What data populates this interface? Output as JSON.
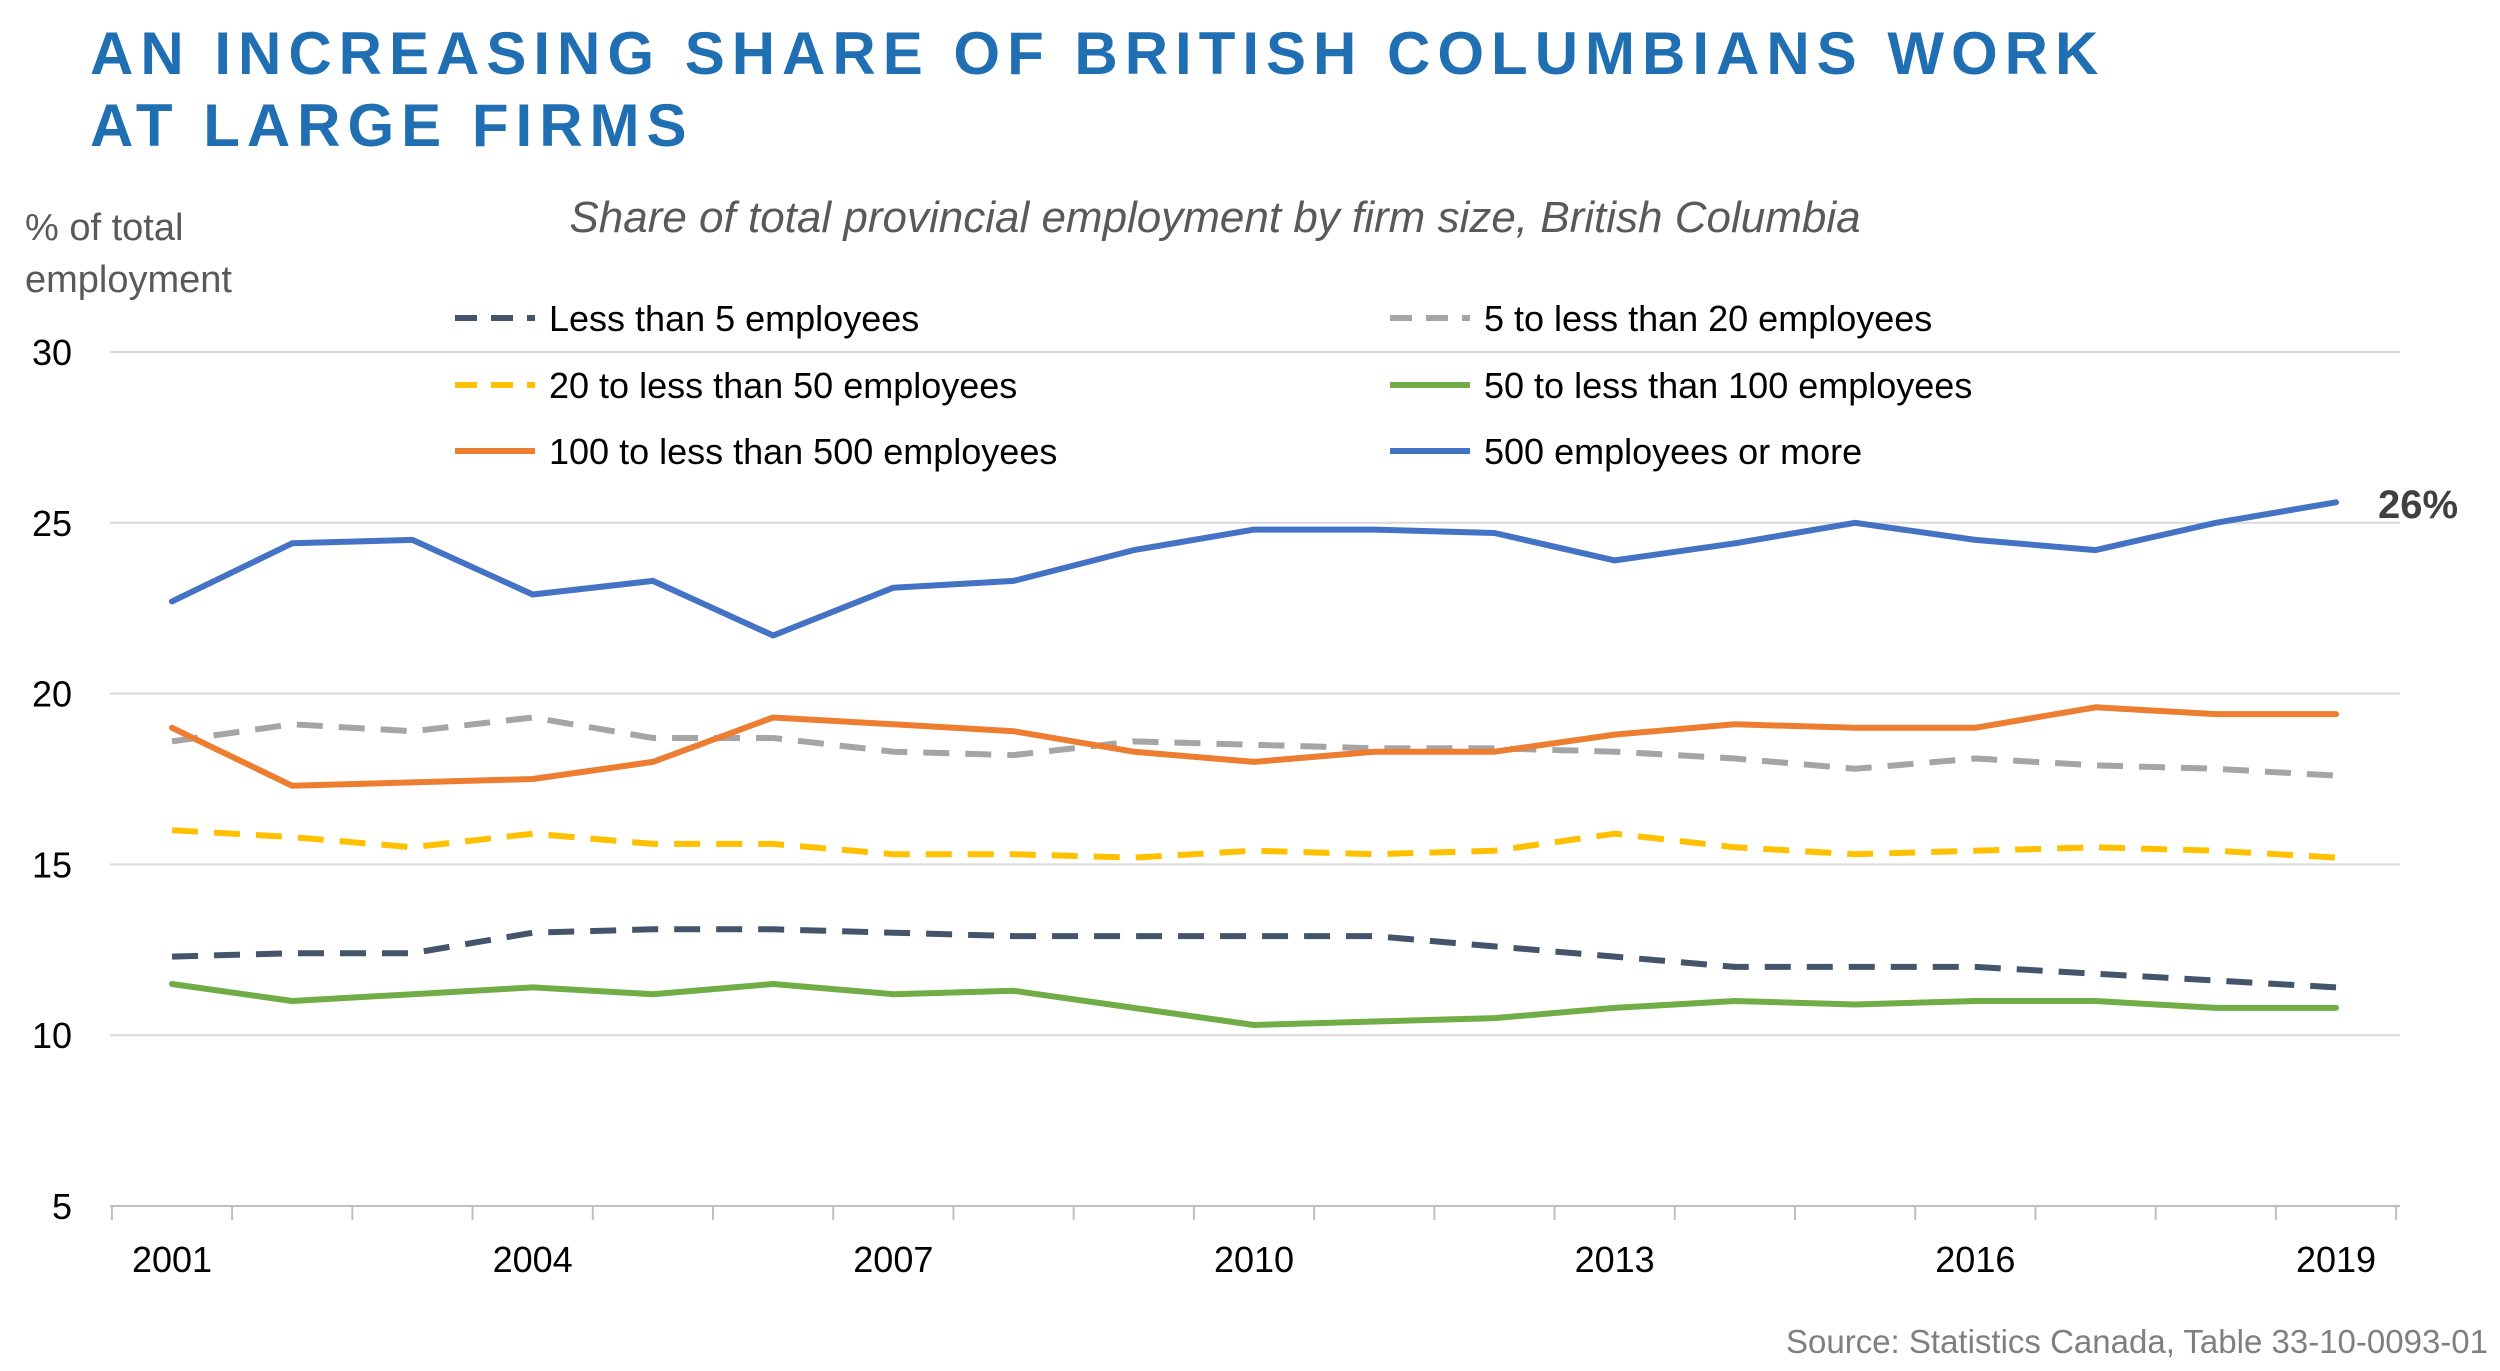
{
  "title_lines": [
    "AN INCREASING SHARE OF BRITISH COLUMBIANS WORK",
    "AT LARGE FIRMS"
  ],
  "source": "Source: Statistics Canada, Table 33-10-0093-01",
  "end_label": "26%",
  "chart_data": {
    "type": "line",
    "subtitle": "Share of total provincial employment by firm size, British Columbia",
    "ylabel_lines": [
      "% of total",
      "employment"
    ],
    "xlabel": "",
    "x": [
      2001,
      2002,
      2003,
      2004,
      2005,
      2006,
      2007,
      2008,
      2009,
      2010,
      2011,
      2012,
      2013,
      2014,
      2015,
      2016,
      2017,
      2018,
      2019
    ],
    "x_ticks": [
      2001,
      2004,
      2007,
      2010,
      2013,
      2016,
      2019
    ],
    "ylim": [
      5,
      30
    ],
    "y_ticks": [
      5,
      10,
      15,
      20,
      25,
      30
    ],
    "grid": true,
    "legend_position": "top",
    "series": [
      {
        "name": "Less than 5 employees",
        "color": "#44546a",
        "dashed": true,
        "values": [
          12.3,
          12.4,
          12.4,
          13.0,
          13.1,
          13.1,
          13.0,
          12.9,
          12.9,
          12.9,
          12.9,
          12.6,
          12.3,
          12.0,
          12.0,
          12.0,
          11.8,
          11.6,
          11.4
        ]
      },
      {
        "name": "5 to less than 20 employees",
        "color": "#a5a5a5",
        "dashed": true,
        "values": [
          18.6,
          19.1,
          18.9,
          19.3,
          18.7,
          18.7,
          18.3,
          18.2,
          18.6,
          18.5,
          18.4,
          18.4,
          18.3,
          18.1,
          17.8,
          18.1,
          17.9,
          17.8,
          17.6
        ]
      },
      {
        "name": "20 to less than 50 employees",
        "color": "#ffc000",
        "dashed": true,
        "values": [
          16.0,
          15.8,
          15.5,
          15.9,
          15.6,
          15.6,
          15.3,
          15.3,
          15.2,
          15.4,
          15.3,
          15.4,
          15.9,
          15.5,
          15.3,
          15.4,
          15.5,
          15.4,
          15.2
        ]
      },
      {
        "name": "50 to less than 100 employees",
        "color": "#70ad47",
        "dashed": false,
        "values": [
          11.5,
          11.0,
          11.2,
          11.4,
          11.2,
          11.5,
          11.2,
          11.3,
          10.8,
          10.3,
          10.4,
          10.5,
          10.8,
          11.0,
          10.9,
          11.0,
          11.0,
          10.8,
          10.8
        ]
      },
      {
        "name": "100 to less than 500 employees",
        "color": "#ed7d31",
        "dashed": false,
        "values": [
          19.0,
          17.3,
          17.4,
          17.5,
          18.0,
          19.3,
          19.1,
          18.9,
          18.3,
          18.0,
          18.3,
          18.3,
          18.8,
          19.1,
          19.0,
          19.0,
          19.6,
          19.4,
          19.4
        ]
      },
      {
        "name": "500 employees or more",
        "color": "#4472c4",
        "dashed": false,
        "values": [
          22.7,
          24.4,
          24.5,
          22.9,
          23.3,
          21.7,
          23.1,
          23.3,
          24.2,
          24.8,
          24.8,
          24.7,
          23.9,
          24.4,
          25.0,
          24.5,
          24.2,
          25.0,
          25.6
        ]
      }
    ]
  }
}
